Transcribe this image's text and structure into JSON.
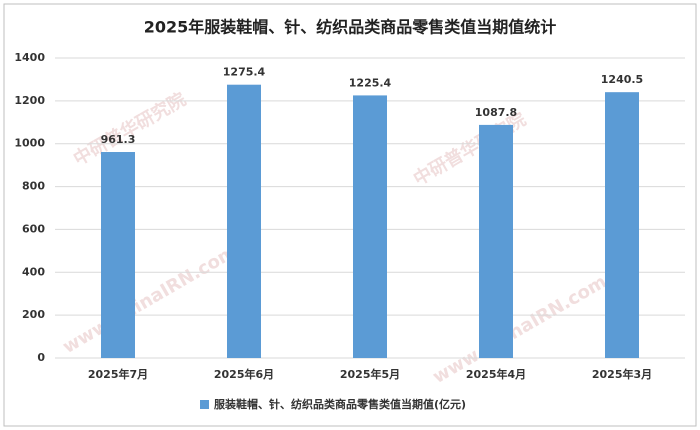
{
  "chart_data": {
    "type": "bar",
    "title": "2025年服装鞋帽、针、纺织品类商品零售类值当期值统计",
    "categories": [
      "2025年7月",
      "2025年6月",
      "2025年5月",
      "2025年4月",
      "2025年3月"
    ],
    "series": [
      {
        "name": "服装鞋帽、针、纺织品类商品零售类值当期值(亿元)",
        "color": "#5b9bd5",
        "values": [
          961.3,
          1275.4,
          1225.4,
          1087.8,
          1240.5
        ]
      }
    ],
    "ylim": [
      0,
      1400
    ],
    "yticks": [
      0,
      200,
      400,
      600,
      800,
      1000,
      1200,
      1400
    ],
    "grid": true,
    "legend": "bottom",
    "watermarks": [
      "www.ChinaIRN.com",
      "中研普华研究院"
    ]
  }
}
